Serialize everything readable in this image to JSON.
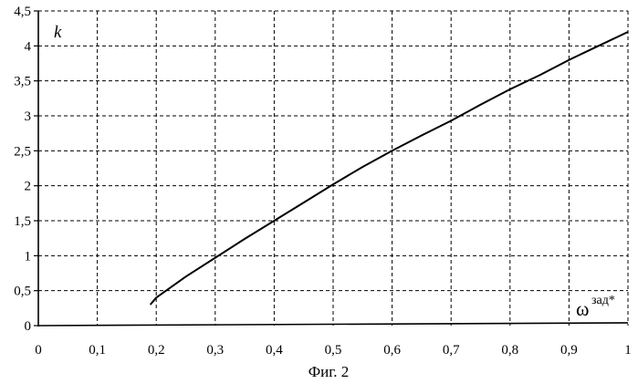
{
  "chart_data": {
    "type": "line",
    "title": "",
    "xlabel": "",
    "ylabel": "",
    "axis_annotations": {
      "y_symbol": "k",
      "x_symbol": "ω",
      "x_symbol_superscript": "зад*"
    },
    "caption": "Фиг. 2",
    "xlim": [
      0,
      1
    ],
    "ylim": [
      0,
      4.5
    ],
    "x_ticks": [
      0,
      0.1,
      0.2,
      0.3,
      0.4,
      0.5,
      0.6,
      0.7,
      0.8,
      0.9,
      1
    ],
    "x_tick_labels": [
      "0",
      "0,1",
      "0,2",
      "0,3",
      "0,4",
      "0,5",
      "0,6",
      "0,7",
      "0,8",
      "0,9",
      "1"
    ],
    "y_ticks": [
      0,
      0.5,
      1,
      1.5,
      2,
      2.5,
      3,
      3.5,
      4,
      4.5
    ],
    "y_tick_labels": [
      "0",
      "0,5",
      "1",
      "1,5",
      "2",
      "2,5",
      "3",
      "3,5",
      "4",
      "4,5"
    ],
    "grid": true,
    "grid_style": "dashed",
    "series": [
      {
        "x": [
          0.19,
          0.2,
          0.25,
          0.3,
          0.35,
          0.4,
          0.45,
          0.5,
          0.55,
          0.6,
          0.65,
          0.7,
          0.75,
          0.8,
          0.85,
          0.9,
          0.95,
          1.0
        ],
        "y": [
          0.3,
          0.4,
          0.7,
          0.97,
          1.24,
          1.5,
          1.76,
          2.02,
          2.27,
          2.5,
          2.72,
          2.93,
          3.16,
          3.38,
          3.58,
          3.8,
          4.0,
          4.2
        ],
        "color": "#000000"
      }
    ]
  }
}
